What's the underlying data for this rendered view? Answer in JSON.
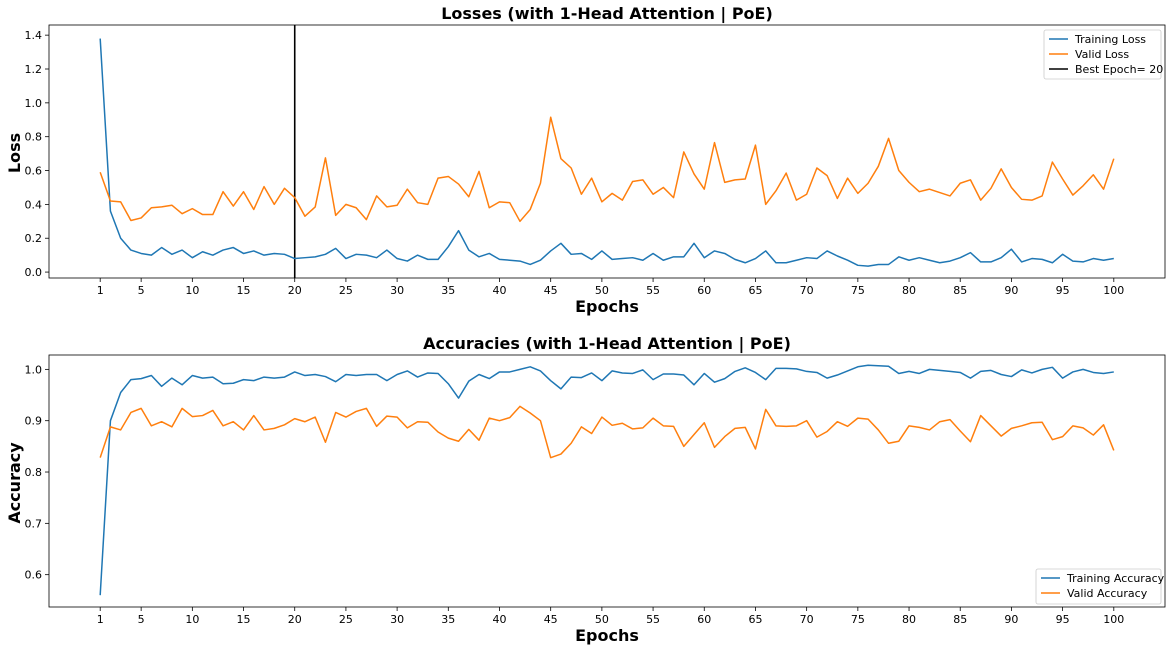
{
  "chart_data": [
    {
      "type": "line",
      "title": "Losses (with 1-Head Attention | PoE)",
      "xlabel": "Epochs",
      "ylabel": "Loss",
      "xlim": [
        -4,
        105
      ],
      "ylim": [
        -0.035,
        1.46
      ],
      "xticks": [
        1,
        5,
        10,
        15,
        20,
        25,
        30,
        35,
        40,
        45,
        50,
        55,
        60,
        65,
        70,
        75,
        80,
        85,
        90,
        95,
        100
      ],
      "yticks": [
        0.0,
        0.2,
        0.4,
        0.6,
        0.8,
        1.0,
        1.2,
        1.4
      ],
      "ytick_labels": [
        "0.0",
        "0.2",
        "0.4",
        "0.6",
        "0.8",
        "1.0",
        "1.2",
        "1.4"
      ],
      "grid": false,
      "legend": "top-right",
      "vline": {
        "x": 20,
        "name": "Best Epoch= 20",
        "color": "#000000"
      },
      "series": [
        {
          "name": "Training Loss",
          "color": "#1f77b4",
          "values": [
            1.38,
            0.36,
            0.2,
            0.13,
            0.11,
            0.1,
            0.145,
            0.105,
            0.13,
            0.085,
            0.12,
            0.1,
            0.13,
            0.145,
            0.11,
            0.125,
            0.1,
            0.11,
            0.105,
            0.08,
            0.085,
            0.09,
            0.105,
            0.14,
            0.08,
            0.105,
            0.1,
            0.085,
            0.13,
            0.08,
            0.065,
            0.1,
            0.075,
            0.075,
            0.15,
            0.245,
            0.13,
            0.09,
            0.11,
            0.075,
            0.07,
            0.065,
            0.045,
            0.07,
            0.125,
            0.17,
            0.105,
            0.11,
            0.075,
            0.125,
            0.075,
            0.08,
            0.085,
            0.07,
            0.11,
            0.07,
            0.09,
            0.09,
            0.17,
            0.085,
            0.125,
            0.11,
            0.075,
            0.055,
            0.08,
            0.125,
            0.055,
            0.055,
            0.07,
            0.085,
            0.08,
            0.125,
            0.095,
            0.07,
            0.04,
            0.035,
            0.045,
            0.045,
            0.09,
            0.07,
            0.085,
            0.07,
            0.055,
            0.065,
            0.085,
            0.115,
            0.06,
            0.06,
            0.085,
            0.135,
            0.06,
            0.08,
            0.075,
            0.055,
            0.105,
            0.065,
            0.06,
            0.08,
            0.07,
            0.08
          ]
        },
        {
          "name": "Valid Loss",
          "color": "#ff7f0e",
          "values": [
            0.59,
            0.42,
            0.415,
            0.305,
            0.32,
            0.38,
            0.385,
            0.395,
            0.345,
            0.375,
            0.34,
            0.34,
            0.475,
            0.39,
            0.475,
            0.37,
            0.505,
            0.4,
            0.495,
            0.44,
            0.33,
            0.385,
            0.675,
            0.335,
            0.4,
            0.38,
            0.31,
            0.45,
            0.385,
            0.395,
            0.49,
            0.41,
            0.4,
            0.555,
            0.565,
            0.52,
            0.445,
            0.595,
            0.38,
            0.415,
            0.41,
            0.3,
            0.37,
            0.525,
            0.915,
            0.67,
            0.615,
            0.46,
            0.555,
            0.415,
            0.465,
            0.425,
            0.535,
            0.545,
            0.46,
            0.5,
            0.44,
            0.71,
            0.58,
            0.49,
            0.765,
            0.53,
            0.545,
            0.55,
            0.75,
            0.4,
            0.48,
            0.585,
            0.425,
            0.46,
            0.615,
            0.57,
            0.435,
            0.555,
            0.465,
            0.525,
            0.625,
            0.79,
            0.6,
            0.53,
            0.475,
            0.49,
            0.47,
            0.45,
            0.525,
            0.545,
            0.425,
            0.495,
            0.61,
            0.5,
            0.43,
            0.425,
            0.45,
            0.65,
            0.55,
            0.455,
            0.51,
            0.575,
            0.49,
            0.67
          ]
        }
      ]
    },
    {
      "type": "line",
      "title": "Accuracies (with 1-Head Attention | PoE)",
      "xlabel": "Epochs",
      "ylabel": "Accuracy",
      "xlim": [
        -4,
        105
      ],
      "ylim": [
        0.537,
        1.028
      ],
      "xticks": [
        1,
        5,
        10,
        15,
        20,
        25,
        30,
        35,
        40,
        45,
        50,
        55,
        60,
        65,
        70,
        75,
        80,
        85,
        90,
        95,
        100
      ],
      "yticks": [
        0.6,
        0.7,
        0.8,
        0.9,
        1.0
      ],
      "ytick_labels": [
        "0.6",
        "0.7",
        "0.8",
        "0.9",
        "1.0"
      ],
      "grid": false,
      "legend": "bottom-right",
      "series": [
        {
          "name": "Training Accuracy",
          "color": "#1f77b4",
          "values": [
            0.56,
            0.9,
            0.955,
            0.98,
            0.982,
            0.988,
            0.967,
            0.983,
            0.97,
            0.988,
            0.983,
            0.985,
            0.972,
            0.973,
            0.98,
            0.978,
            0.985,
            0.983,
            0.985,
            0.995,
            0.988,
            0.99,
            0.986,
            0.976,
            0.99,
            0.988,
            0.99,
            0.99,
            0.978,
            0.99,
            0.997,
            0.985,
            0.993,
            0.992,
            0.972,
            0.944,
            0.977,
            0.99,
            0.982,
            0.995,
            0.995,
            1.0,
            1.005,
            0.997,
            0.978,
            0.962,
            0.985,
            0.984,
            0.993,
            0.978,
            0.997,
            0.993,
            0.992,
            0.999,
            0.98,
            0.991,
            0.991,
            0.989,
            0.97,
            0.992,
            0.975,
            0.982,
            0.996,
            1.003,
            0.994,
            0.98,
            1.002,
            1.002,
            1.001,
            0.996,
            0.994,
            0.983,
            0.989,
            0.997,
            1.005,
            1.008,
            1.007,
            1.006,
            0.992,
            0.996,
            0.992,
            1.0,
            0.998,
            0.996,
            0.994,
            0.983,
            0.996,
            0.998,
            0.99,
            0.986,
            0.999,
            0.993,
            1.0,
            1.004,
            0.983,
            0.995,
            1.0,
            0.994,
            0.992,
            0.995
          ]
        },
        {
          "name": "Valid Accuracy",
          "color": "#ff7f0e",
          "values": [
            0.828,
            0.888,
            0.882,
            0.916,
            0.924,
            0.89,
            0.898,
            0.888,
            0.924,
            0.908,
            0.91,
            0.92,
            0.89,
            0.898,
            0.882,
            0.91,
            0.882,
            0.885,
            0.892,
            0.904,
            0.898,
            0.907,
            0.858,
            0.916,
            0.907,
            0.918,
            0.924,
            0.889,
            0.909,
            0.907,
            0.886,
            0.898,
            0.897,
            0.878,
            0.866,
            0.86,
            0.883,
            0.862,
            0.905,
            0.9,
            0.906,
            0.928,
            0.915,
            0.9,
            0.828,
            0.835,
            0.856,
            0.888,
            0.875,
            0.907,
            0.891,
            0.895,
            0.884,
            0.886,
            0.905,
            0.89,
            0.889,
            0.85,
            0.873,
            0.896,
            0.848,
            0.869,
            0.885,
            0.887,
            0.845,
            0.922,
            0.89,
            0.889,
            0.89,
            0.9,
            0.868,
            0.879,
            0.898,
            0.889,
            0.905,
            0.903,
            0.882,
            0.856,
            0.86,
            0.89,
            0.887,
            0.882,
            0.898,
            0.902,
            0.88,
            0.859,
            0.91,
            0.89,
            0.87,
            0.885,
            0.89,
            0.896,
            0.897,
            0.863,
            0.869,
            0.89,
            0.886,
            0.872,
            0.892,
            0.842
          ]
        }
      ]
    }
  ]
}
